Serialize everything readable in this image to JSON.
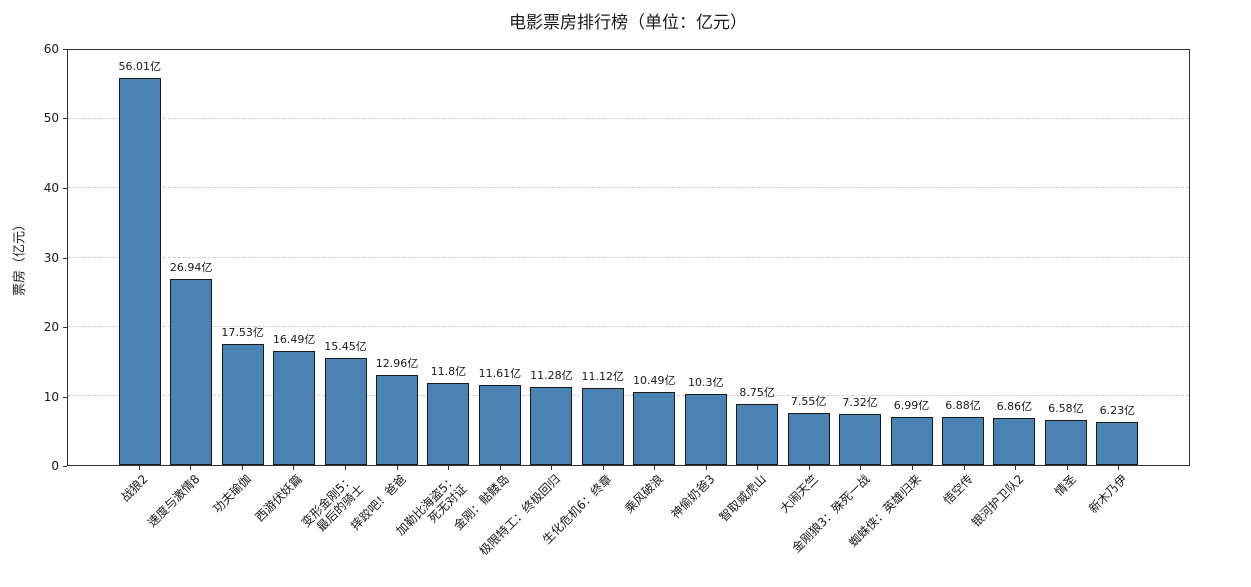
{
  "chart_data": {
    "type": "bar",
    "title": "电影票房排行榜（单位：亿元）",
    "xlabel": "",
    "ylabel": "票房（亿元）",
    "ylim": [
      0,
      60
    ],
    "yticks": [
      0,
      10,
      20,
      30,
      40,
      50,
      60
    ],
    "grid": "horizontal-dashed",
    "legend": "none",
    "bar_color": "#4a83b4",
    "bar_edge_color": "#1a1a1a",
    "categories": [
      "战狼2",
      "速度与激情8",
      "功夫瑜伽",
      "西游伏妖篇",
      "变形金刚5：\n最后的骑士",
      "摔跤吧！爸爸",
      "加勒比海盗5：\n死无对证",
      "金刚：骷髅岛",
      "极限特工：终极回归",
      "生化危机6：终章",
      "乘风破浪",
      "神偷奶爸3",
      "智取威虎山",
      "大闹天竺",
      "金刚狼3：殊死一战",
      "蜘蛛侠：英雄归来",
      "悟空传",
      "银河护卫队2",
      "情圣",
      "新木乃伊"
    ],
    "values": [
      56.01,
      26.94,
      17.53,
      16.49,
      15.45,
      12.96,
      11.8,
      11.61,
      11.28,
      11.12,
      10.49,
      10.3,
      8.75,
      7.55,
      7.32,
      6.99,
      6.88,
      6.86,
      6.58,
      6.23
    ],
    "value_labels": [
      "56.01亿",
      "26.94亿",
      "17.53亿",
      "16.49亿",
      "15.45亿",
      "12.96亿",
      "11.8亿",
      "11.61亿",
      "11.28亿",
      "11.12亿",
      "10.49亿",
      "10.3亿",
      "8.75亿",
      "7.55亿",
      "7.32亿",
      "6.99亿",
      "6.88亿",
      "6.86亿",
      "6.58亿",
      "6.23亿"
    ]
  }
}
